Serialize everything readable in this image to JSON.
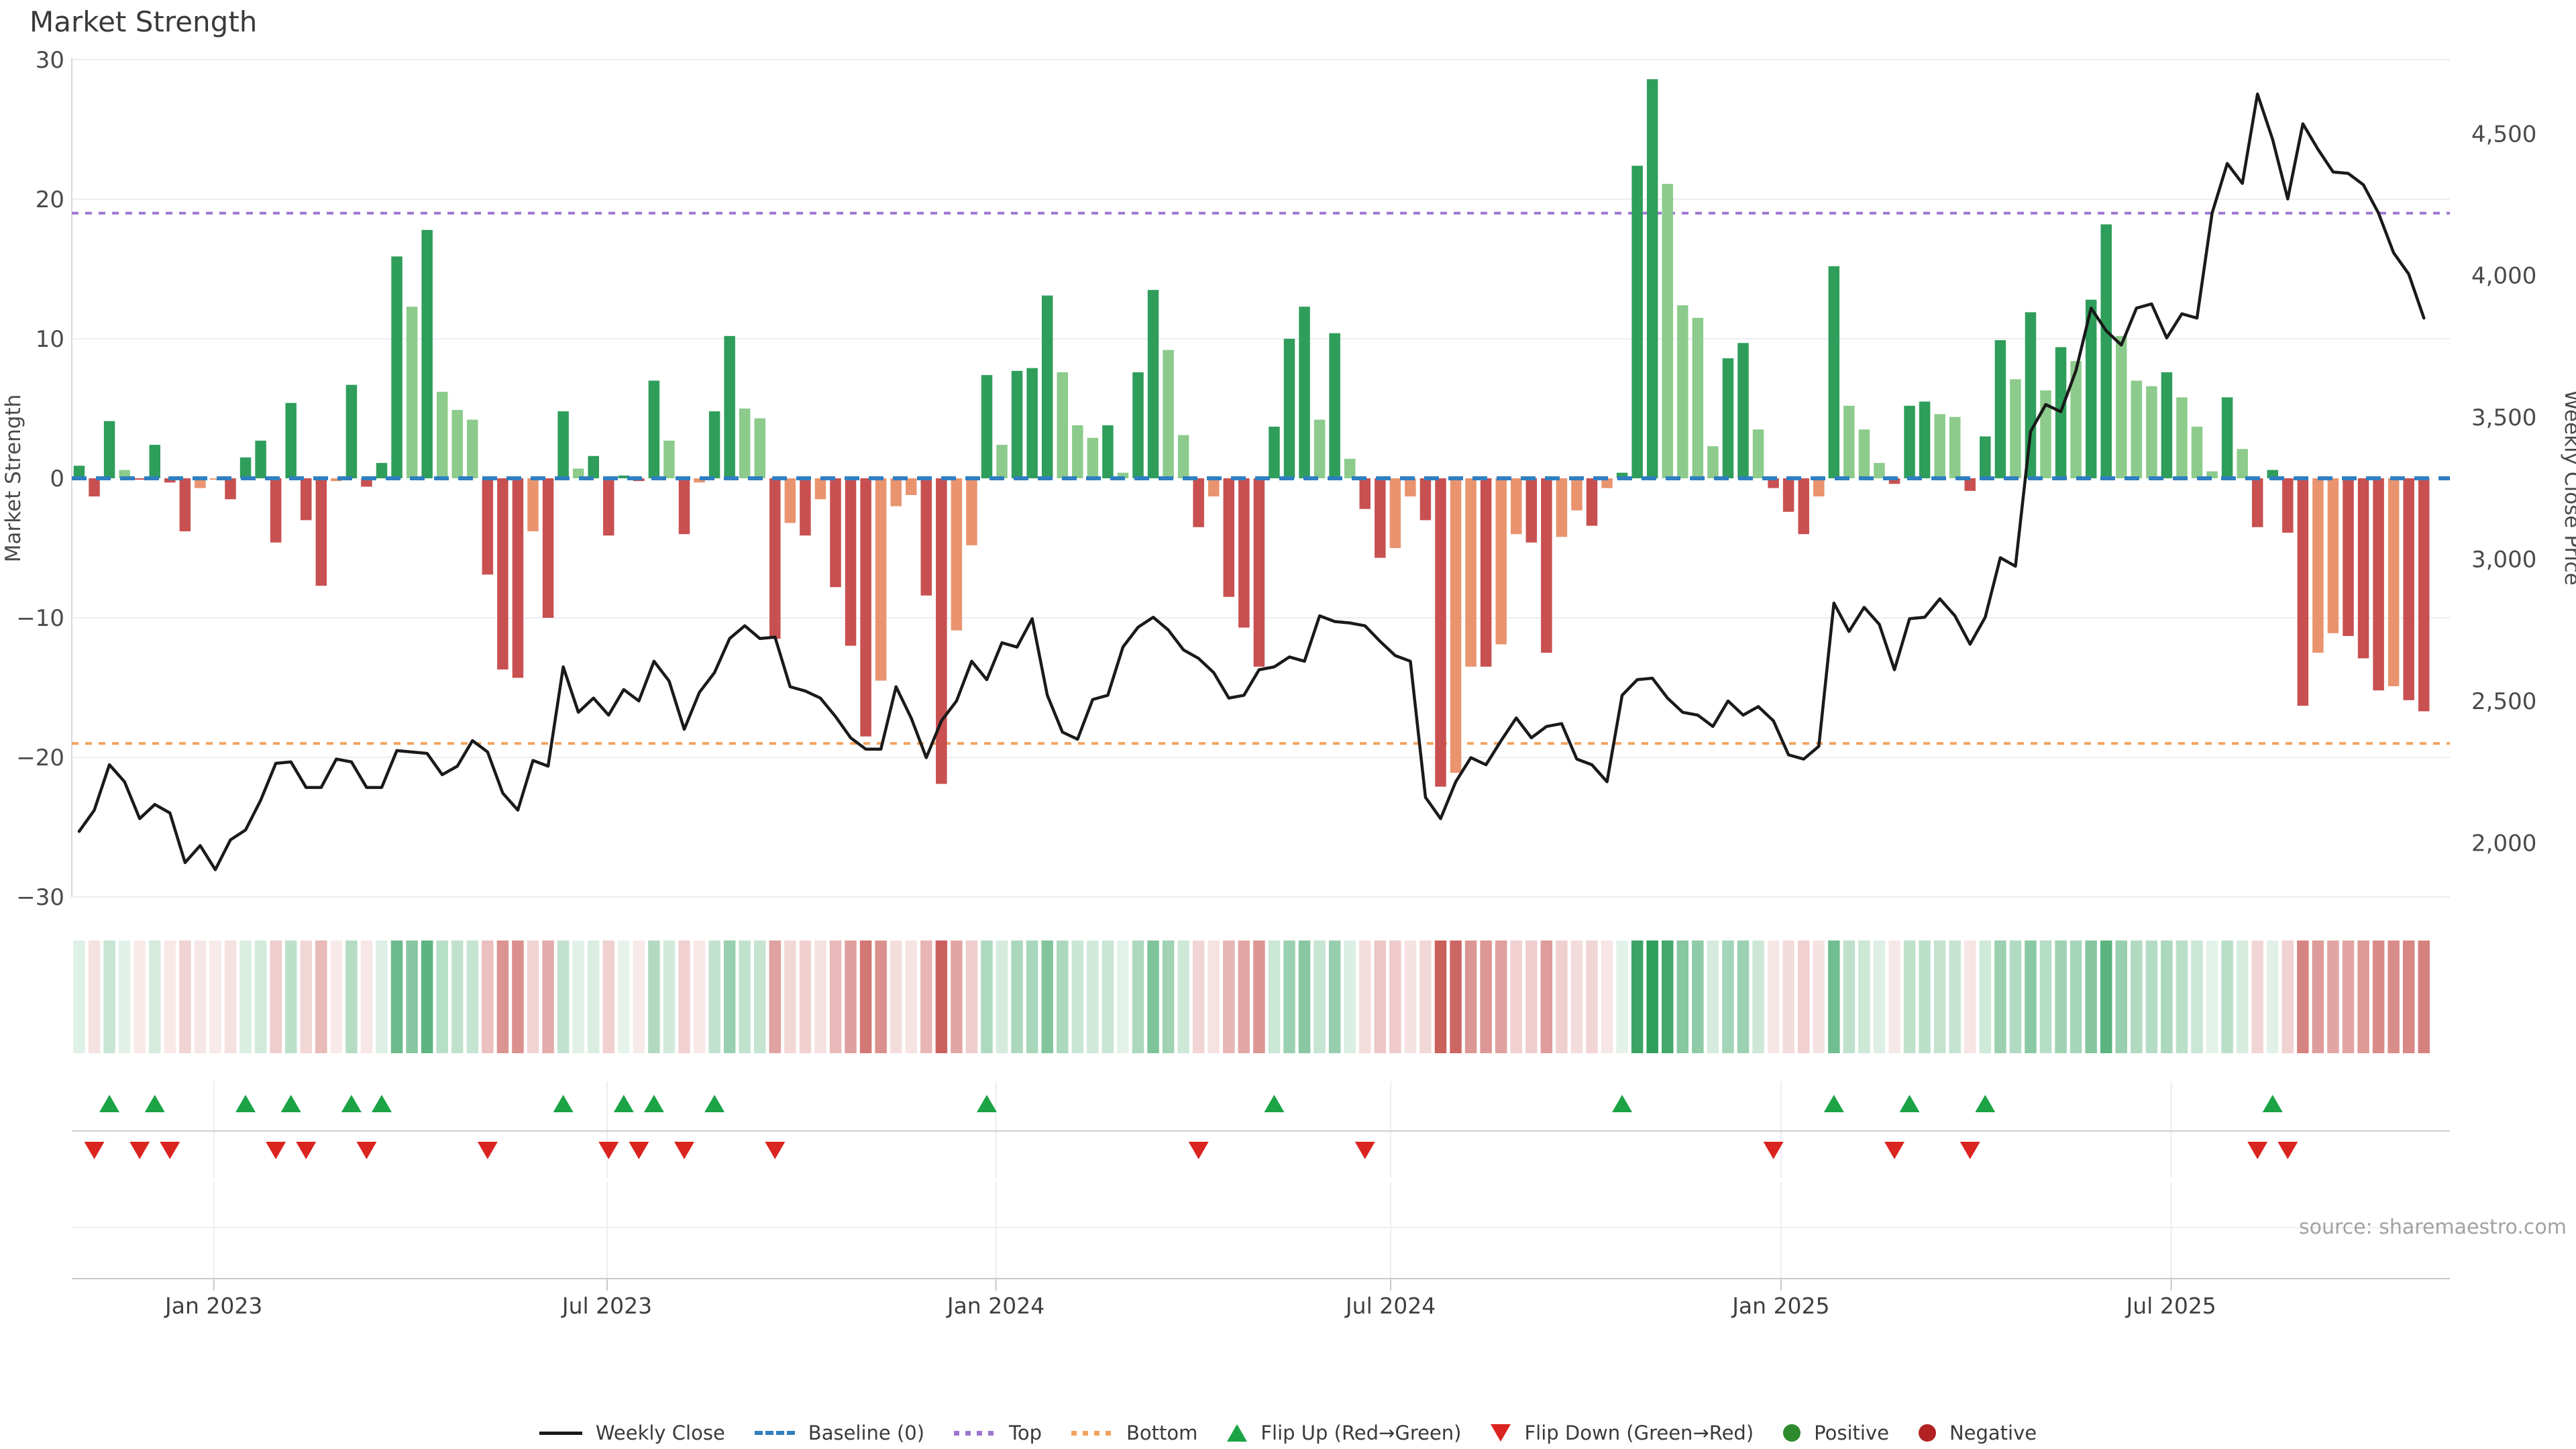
{
  "page_title": "Market Strength",
  "source_note": "source: sharemaestro.com",
  "axes": {
    "left_label": "Market Strength",
    "right_label": "Weekly Close Price",
    "left_ticks": [
      {
        "label": "30",
        "value": 30
      },
      {
        "label": "20",
        "value": 20
      },
      {
        "label": "10",
        "value": 10
      },
      {
        "label": "0",
        "value": 0
      },
      {
        "label": "−10",
        "value": -10
      },
      {
        "label": "−20",
        "value": -20
      },
      {
        "label": "−30",
        "value": -30
      }
    ],
    "right_ticks": [
      {
        "label": "4,500",
        "value": 4500
      },
      {
        "label": "4,000",
        "value": 4000
      },
      {
        "label": "3,500",
        "value": 3500
      },
      {
        "label": "3,000",
        "value": 3000
      },
      {
        "label": "2,500",
        "value": 2500
      },
      {
        "label": "2,000",
        "value": 2000
      }
    ],
    "x_ticks": [
      {
        "label": "Jan 2023",
        "week": 8.9
      },
      {
        "label": "Jul 2023",
        "week": 34.9
      },
      {
        "label": "Jan 2024",
        "week": 60.6
      },
      {
        "label": "Jul 2024",
        "week": 86.7
      },
      {
        "label": "Jan 2025",
        "week": 112.5
      },
      {
        "label": "Jul 2025",
        "week": 138.3
      }
    ]
  },
  "legend": [
    {
      "id": "weekly-close",
      "label": "Weekly Close",
      "swatch": "sw-line"
    },
    {
      "id": "baseline",
      "label": "Baseline (0)",
      "swatch": "sw-dash"
    },
    {
      "id": "top",
      "label": "Top",
      "swatch": "sw-dots-purple"
    },
    {
      "id": "bottom",
      "label": "Bottom",
      "swatch": "sw-dots-orange"
    },
    {
      "id": "flip-up",
      "label": "Flip Up (Red→Green)",
      "swatch": "sw-tri-up"
    },
    {
      "id": "flip-down",
      "label": "Flip Down (Green→Red)",
      "swatch": "sw-tri-down"
    },
    {
      "id": "positive",
      "label": "Positive",
      "swatch": "sw-circle-green"
    },
    {
      "id": "negative",
      "label": "Negative",
      "swatch": "sw-circle-red"
    }
  ],
  "colors": {
    "bar_positive_rising": "#2f9e5b",
    "bar_positive_falling": "#8ccb8c",
    "bar_negative_falling": "#c95050",
    "bar_negative_improving": "#e9946f",
    "line": "#1a1a1a",
    "baseline": "#2f7fc1",
    "top_line": "#9d76d0",
    "bottom_line": "#f2a25e",
    "flip_up": "#1ba345",
    "flip_down": "#da2420",
    "heat_positive_rgb": "47,158,91",
    "heat_negative_rgb": "198,84,80",
    "gridline": "#ededf2",
    "spine": "#d9d9e0",
    "divider": "#cfcfcf",
    "axis_line": "#c9c9c9",
    "tick_text": "#4a4a4a",
    "label_text": "#3f3f3f"
  },
  "chart_data": {
    "type": "bar",
    "subtype": "bar+line combo with derived heatmap and flip markers",
    "title": "Market Strength",
    "xlabel": "",
    "ylabel_left": "Market Strength",
    "ylabel_right": "Weekly Close Price",
    "x_unit": "week index (weekly data, Nov 2022 – Oct 2025)",
    "n_points": 156,
    "left_axis_range": [
      -30,
      30
    ],
    "right_axis_tick_range": [
      2000,
      4500
    ],
    "baseline_value": 0,
    "top_reference": 19,
    "bottom_reference": -19,
    "right_axis_anchor_price_at_zero_strength": 3285,
    "right_axis_price_per_strength_unit": 49.2,
    "grid": "horizontal only in main panel; vertical date gridlines in lower panels",
    "legend_position": "bottom center",
    "series": [
      {
        "name": "Market Strength",
        "type": "bar",
        "axis": "left",
        "values": [
          0.9,
          -1.3,
          4.1,
          0.6,
          -0.1,
          2.4,
          -0.3,
          -3.8,
          -0.7,
          -0.1,
          -1.5,
          1.5,
          2.7,
          -4.6,
          5.4,
          -3.0,
          -7.7,
          -0.2,
          6.7,
          -0.6,
          1.1,
          15.9,
          12.3,
          17.8,
          6.2,
          4.9,
          4.2,
          -6.9,
          -13.7,
          -14.3,
          -3.8,
          -10.0,
          4.8,
          0.7,
          1.6,
          -4.1,
          0.2,
          -0.2,
          7.0,
          2.7,
          -4.0,
          -0.3,
          4.8,
          10.2,
          5.0,
          4.3,
          -11.5,
          -3.2,
          -4.1,
          -1.5,
          -7.8,
          -12.0,
          -18.5,
          -14.5,
          -2.0,
          -1.2,
          -8.4,
          -21.9,
          -10.9,
          -4.8,
          7.4,
          2.4,
          7.7,
          7.9,
          13.1,
          7.6,
          3.8,
          2.9,
          3.8,
          0.4,
          7.6,
          13.5,
          9.2,
          3.1,
          -3.5,
          -1.3,
          -8.5,
          -10.7,
          -13.5,
          3.7,
          10.0,
          12.3,
          4.2,
          10.4,
          1.4,
          -2.2,
          -5.7,
          -5.0,
          -1.3,
          -3.0,
          -22.1,
          -21.1,
          -13.5,
          -13.5,
          -11.9,
          -4.0,
          -4.6,
          -12.5,
          -4.2,
          -2.3,
          -3.4,
          -0.7,
          0.4,
          22.4,
          28.6,
          21.1,
          12.4,
          11.5,
          2.3,
          8.6,
          9.7,
          3.5,
          -0.7,
          -2.4,
          -4.0,
          -1.3,
          15.2,
          5.2,
          3.5,
          1.1,
          -0.4,
          5.2,
          5.5,
          4.6,
          4.4,
          -0.9,
          3.0,
          9.9,
          7.1,
          11.9,
          6.3,
          9.4,
          8.4,
          12.8,
          18.2,
          10.2,
          7.0,
          6.6,
          7.6,
          5.8,
          3.7,
          0.5,
          5.8,
          2.1,
          -3.5,
          0.6,
          -3.9,
          -16.3,
          -12.5,
          -11.1,
          -11.3,
          -12.9,
          -15.2,
          -14.9,
          -15.9,
          -16.7
        ]
      },
      {
        "name": "Weekly Close",
        "type": "line",
        "axis": "right",
        "values": [
          2040,
          2115,
          2275,
          2215,
          2085,
          2135,
          2105,
          1930,
          1990,
          1905,
          2010,
          2045,
          2150,
          2280,
          2285,
          2195,
          2195,
          2295,
          2285,
          2195,
          2195,
          2325,
          2320,
          2315,
          2240,
          2270,
          2360,
          2320,
          2175,
          2115,
          2290,
          2270,
          2620,
          2460,
          2510,
          2450,
          2540,
          2500,
          2640,
          2570,
          2400,
          2530,
          2600,
          2720,
          2765,
          2720,
          2725,
          2550,
          2535,
          2510,
          2445,
          2370,
          2330,
          2330,
          2550,
          2440,
          2300,
          2430,
          2500,
          2640,
          2575,
          2705,
          2690,
          2790,
          2520,
          2390,
          2365,
          2505,
          2520,
          2690,
          2760,
          2795,
          2750,
          2680,
          2650,
          2600,
          2510,
          2520,
          2610,
          2620,
          2655,
          2640,
          2800,
          2780,
          2775,
          2765,
          2710,
          2660,
          2640,
          2160,
          2085,
          2215,
          2300,
          2275,
          2360,
          2440,
          2370,
          2410,
          2420,
          2295,
          2275,
          2215,
          2520,
          2575,
          2580,
          2510,
          2460,
          2450,
          2410,
          2500,
          2450,
          2480,
          2430,
          2310,
          2295,
          2340,
          2845,
          2745,
          2830,
          2770,
          2610,
          2790,
          2795,
          2860,
          2800,
          2700,
          2795,
          3005,
          2975,
          3450,
          3545,
          3520,
          3665,
          3885,
          3805,
          3755,
          3885,
          3900,
          3780,
          3865,
          3850,
          4220,
          4395,
          4325,
          4640,
          4480,
          4270,
          4535,
          4445,
          4365,
          4360,
          4320,
          4220,
          4080,
          4005,
          3850
        ]
      }
    ],
    "bar_shade_rule": "positive bar dark green if value >= previous value else light green; negative bar dark red if value <= previous value else salmon",
    "heatmap_rule": "one cell per week, green for positive strength, red for negative, opacity scales with magnitude",
    "flip_marker_rule": "green up-triangle when strength turns positive after non-positive week; red down-triangle when it turns negative after non-negative week"
  }
}
